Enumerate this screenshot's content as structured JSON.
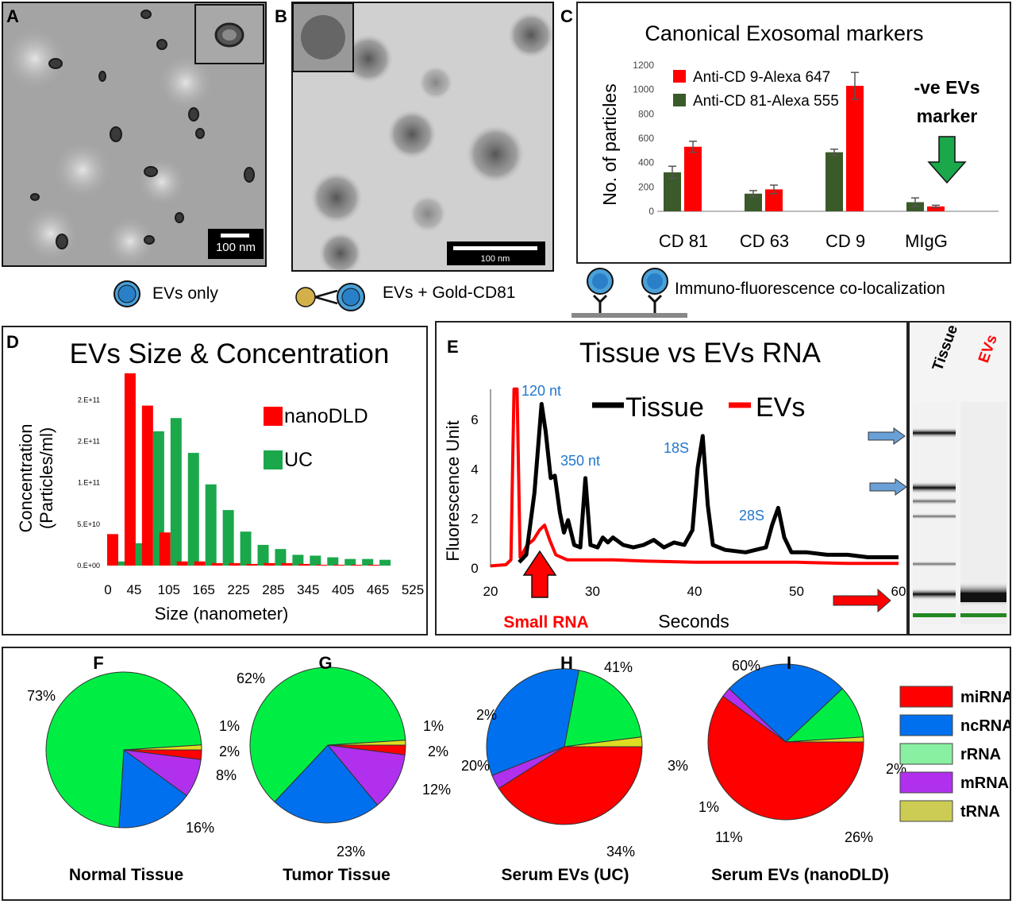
{
  "panels": {
    "A": {
      "letter": "A",
      "scale_bar": "100 nm"
    },
    "B": {
      "letter": "B",
      "scale_bar": "100 nm"
    },
    "C": {
      "letter": "C"
    },
    "D": {
      "letter": "D"
    },
    "E": {
      "letter": "E"
    },
    "F": {
      "letter": "F"
    },
    "G": {
      "letter": "G"
    },
    "H": {
      "letter": "H"
    },
    "I": {
      "letter": "I"
    }
  },
  "schematics": {
    "evs_only": "EVs only",
    "evs_gold": "EVs + Gold-CD81",
    "immuno": "Immuno-fluorescence co-localization"
  },
  "colors": {
    "red": "#ff0000",
    "dark_green": "#3a5a2a",
    "green": "#1aa84b",
    "light_green": "#00ee44",
    "blue": "#0070ee",
    "violet": "#b030ee",
    "yellow": "#dddd22",
    "label_blue": "#2277cc"
  },
  "chart_data": [
    {
      "id": "C",
      "type": "bar",
      "title": "Canonical Exosomal markers",
      "ylabel": "No. of particles",
      "ylim": [
        0,
        1200
      ],
      "yticks": [
        "0",
        "200",
        "400",
        "600",
        "800",
        "1000",
        "1200"
      ],
      "categories": [
        "CD 81",
        "CD 63",
        "CD 9",
        "MIgG"
      ],
      "series": [
        {
          "name": "Anti-CD 81-Alexa 555",
          "color": "#3a5a2a",
          "values": [
            320,
            145,
            485,
            75
          ],
          "errors": [
            50,
            25,
            25,
            35
          ]
        },
        {
          "name": "Anti-CD 9-Alexa 647",
          "color": "#ff0000",
          "values": [
            530,
            180,
            1030,
            40
          ],
          "errors": [
            45,
            35,
            110,
            10
          ]
        }
      ],
      "annotation": "-ve EVs marker"
    },
    {
      "id": "D",
      "type": "bar",
      "title": "EVs Size & Concentration",
      "xlabel": "Size (nanometer)",
      "ylabel": "Concentration (Particles/ml)",
      "ylabel_lines": [
        "Concentration",
        "(Particles/ml)"
      ],
      "xticks": [
        "0",
        "45",
        "105",
        "165",
        "225",
        "285",
        "345",
        "405",
        "465",
        "525"
      ],
      "yticks": [
        "0.E+00",
        "5.E+10",
        "1.E+11",
        "2.E+11",
        "2.E+11"
      ],
      "ylim": [
        0,
        230
      ],
      "x": [
        15,
        45,
        75,
        105,
        135,
        165,
        195,
        225,
        255,
        285,
        315,
        345,
        375,
        405,
        435,
        465
      ],
      "series": [
        {
          "name": "nanoDLD",
          "color": "#ff0000",
          "values": [
            38,
            232,
            193,
            40,
            5,
            5,
            3,
            3,
            2,
            3,
            3,
            2,
            1,
            1,
            1,
            1
          ]
        },
        {
          "name": "UC",
          "color": "#1aa84b",
          "values": [
            5,
            27,
            162,
            178,
            136,
            98,
            67,
            41,
            25,
            20,
            13,
            12,
            10,
            8,
            8,
            7
          ]
        }
      ]
    },
    {
      "id": "E",
      "type": "line",
      "title": "Tissue vs EVs RNA",
      "xlabel": "Seconds",
      "ylabel": "Fluorescence Unit",
      "xlim": [
        20,
        60
      ],
      "ylim": [
        0,
        7
      ],
      "xticks": [
        "20",
        "30",
        "40",
        "50",
        "60"
      ],
      "yticks": [
        "0",
        "2",
        "4",
        "6"
      ],
      "series": [
        {
          "name": "Tissue",
          "color": "#000000",
          "x": [
            22.8,
            23.5,
            24.3,
            25,
            25.4,
            25.9,
            26.3,
            26.8,
            27.2,
            27.6,
            28.2,
            28.8,
            29.3,
            29.8,
            30.5,
            31,
            31.5,
            32,
            33,
            34,
            35,
            36,
            37,
            38,
            39,
            39.8,
            40.3,
            40.8,
            41.3,
            41.8,
            43,
            45,
            47,
            47.6,
            48.2,
            48.8,
            49.5,
            51,
            53,
            55,
            57,
            59,
            60
          ],
          "y": [
            0.2,
            0.5,
            3.0,
            6.6,
            5.5,
            3.6,
            3.7,
            2.2,
            1.4,
            1.9,
            0.9,
            0.8,
            3.6,
            0.9,
            0.8,
            1.2,
            1.0,
            1.2,
            0.9,
            0.8,
            0.9,
            1.1,
            0.8,
            1.0,
            0.9,
            1.5,
            4.0,
            5.3,
            2.5,
            0.9,
            0.7,
            0.6,
            0.8,
            1.7,
            2.4,
            1.2,
            0.6,
            0.6,
            0.5,
            0.5,
            0.4,
            0.4,
            0.4
          ]
        },
        {
          "name": "EVs",
          "color": "#ff0000",
          "x": [
            20,
            21.5,
            22.0,
            22.3,
            22.6,
            22.9,
            23.2,
            23.6,
            24.2,
            24.8,
            25.3,
            25.8,
            26.4,
            27.5,
            29,
            32,
            35,
            40,
            45,
            50,
            55,
            60
          ],
          "y": [
            0.05,
            0.1,
            0.3,
            7.2,
            7.2,
            0.4,
            0.6,
            0.9,
            1.1,
            1.5,
            1.7,
            1.1,
            0.5,
            0.3,
            0.3,
            0.3,
            0.25,
            0.2,
            0.2,
            0.2,
            0.15,
            0.15
          ]
        }
      ],
      "annotations": [
        "120 nt",
        "350 nt",
        "18S",
        "28S",
        "Small RNA"
      ],
      "gel_lanes": [
        "Tissue",
        "EVs"
      ]
    },
    {
      "id": "F",
      "type": "pie",
      "title": "Normal Tissue",
      "slices": [
        {
          "label": "miRNA",
          "value": 2
        },
        {
          "label": "mRNA",
          "value": 8
        },
        {
          "label": "ncRNA",
          "value": 16
        },
        {
          "label": "rRNA",
          "value": 73
        },
        {
          "label": "tRNA",
          "value": 1
        }
      ],
      "labels": [
        "73%",
        "1%",
        "2%",
        "8%",
        "16%"
      ]
    },
    {
      "id": "G",
      "type": "pie",
      "title": "Tumor Tissue",
      "slices": [
        {
          "label": "miRNA",
          "value": 2
        },
        {
          "label": "mRNA",
          "value": 12
        },
        {
          "label": "ncRNA",
          "value": 23
        },
        {
          "label": "rRNA",
          "value": 62
        },
        {
          "label": "tRNA",
          "value": 1
        }
      ],
      "labels": [
        "62%",
        "1%",
        "2%",
        "12%",
        "23%"
      ]
    },
    {
      "id": "H",
      "type": "pie",
      "title": "Serum EVs (UC)",
      "slices": [
        {
          "label": "miRNA",
          "value": 41
        },
        {
          "label": "mRNA",
          "value": 3
        },
        {
          "label": "ncRNA",
          "value": 34
        },
        {
          "label": "rRNA",
          "value": 20
        },
        {
          "label": "tRNA",
          "value": 2
        }
      ],
      "labels": [
        "41%",
        "2%",
        "20%",
        "3%",
        "34%"
      ]
    },
    {
      "id": "I",
      "type": "pie",
      "title": "Serum EVs (nanoDLD)",
      "slices": [
        {
          "label": "miRNA",
          "value": 60
        },
        {
          "label": "mRNA",
          "value": 2
        },
        {
          "label": "ncRNA",
          "value": 26
        },
        {
          "label": "rRNA",
          "value": 11
        },
        {
          "label": "tRNA",
          "value": 1
        }
      ],
      "labels": [
        "60%",
        "2%",
        "1%",
        "11%",
        "26%"
      ]
    }
  ],
  "pie_legend": [
    {
      "label": "miRNA",
      "color": "#ff0000"
    },
    {
      "label": "ncRNA",
      "color": "#0070ee"
    },
    {
      "label": "rRNA",
      "color": "#88f0a0"
    },
    {
      "label": "mRNA",
      "color": "#b030ee"
    },
    {
      "label": "tRNA",
      "color": "#cccc55"
    }
  ]
}
